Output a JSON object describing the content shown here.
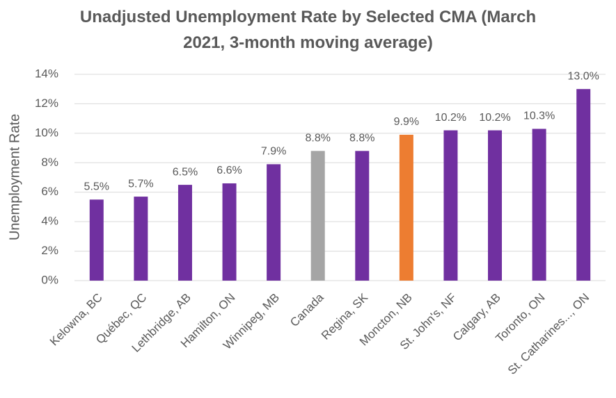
{
  "chart_data": {
    "type": "bar",
    "title": "Unadjusted Unemployment Rate by Selected CMA (March 2021, 3-month moving average)",
    "y_label": "Unemployment Rate",
    "categories": [
      "Kelowna, BC",
      "Québec, QC",
      "Lethbridge, AB",
      "Hamilton, ON",
      "Winnipeg, MB",
      "Canada",
      "Regina, SK",
      "Moncton, NB",
      "St. John's, NF",
      "Calgary, AB",
      "Toronto, ON",
      "St. Catharines..., ON"
    ],
    "values": [
      5.5,
      5.7,
      6.5,
      6.6,
      7.9,
      8.8,
      8.8,
      9.9,
      10.2,
      10.2,
      10.3,
      13.0
    ],
    "value_labels": [
      "5.5%",
      "5.7%",
      "6.5%",
      "6.6%",
      "7.9%",
      "8.8%",
      "8.8%",
      "9.9%",
      "10.2%",
      "10.2%",
      "10.3%",
      "13.0%"
    ],
    "colors": [
      "#7030a0",
      "#7030a0",
      "#7030a0",
      "#7030a0",
      "#7030a0",
      "#a5a5a5",
      "#7030a0",
      "#ed7d31",
      "#7030a0",
      "#7030a0",
      "#7030a0",
      "#7030a0"
    ],
    "ylim": [
      0,
      14
    ],
    "yticks": [
      {
        "value": 0,
        "label": "0%"
      },
      {
        "value": 2,
        "label": "2%"
      },
      {
        "value": 4,
        "label": "4%"
      },
      {
        "value": 6,
        "label": "6%"
      },
      {
        "value": 8,
        "label": "8%"
      },
      {
        "value": 10,
        "label": "10%"
      },
      {
        "value": 12,
        "label": "12%"
      },
      {
        "value": 14,
        "label": "14%"
      }
    ],
    "grid": true
  }
}
